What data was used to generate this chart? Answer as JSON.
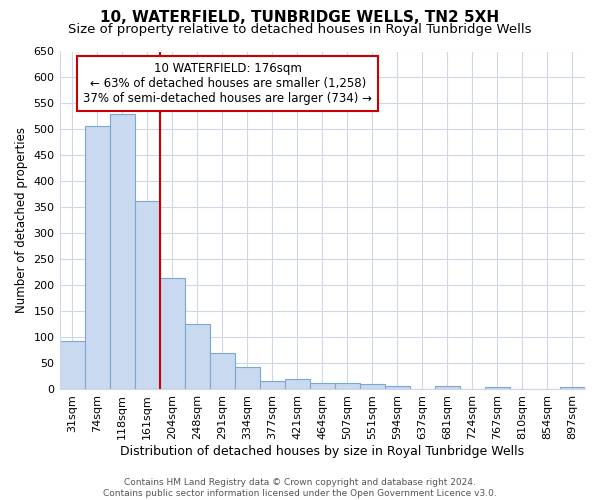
{
  "title": "10, WATERFIELD, TUNBRIDGE WELLS, TN2 5XH",
  "subtitle": "Size of property relative to detached houses in Royal Tunbridge Wells",
  "xlabel": "Distribution of detached houses by size in Royal Tunbridge Wells",
  "ylabel": "Number of detached properties",
  "footer_line1": "Contains HM Land Registry data © Crown copyright and database right 2024.",
  "footer_line2": "Contains public sector information licensed under the Open Government Licence v3.0.",
  "categories": [
    "31sqm",
    "74sqm",
    "118sqm",
    "161sqm",
    "204sqm",
    "248sqm",
    "291sqm",
    "334sqm",
    "377sqm",
    "421sqm",
    "464sqm",
    "507sqm",
    "551sqm",
    "594sqm",
    "637sqm",
    "681sqm",
    "724sqm",
    "767sqm",
    "810sqm",
    "854sqm",
    "897sqm"
  ],
  "values": [
    92,
    507,
    530,
    363,
    214,
    125,
    70,
    43,
    16,
    19,
    11,
    11,
    9,
    5,
    0,
    5,
    0,
    4,
    0,
    0,
    4
  ],
  "bar_color": "#c8d9f0",
  "bar_edge_color": "#7ba7d4",
  "property_label": "10 WATERFIELD: 176sqm",
  "annotation_line1": "← 63% of detached houses are smaller (1,258)",
  "annotation_line2": "37% of semi-detached houses are larger (734) →",
  "annotation_box_color": "#ffffff",
  "annotation_border_color": "#cc0000",
  "property_line_color": "#cc0000",
  "ylim": [
    0,
    650
  ],
  "yticks": [
    0,
    50,
    100,
    150,
    200,
    250,
    300,
    350,
    400,
    450,
    500,
    550,
    600,
    650
  ],
  "bg_color": "#ffffff",
  "grid_color": "#d0d8e8",
  "title_fontsize": 11,
  "subtitle_fontsize": 9.5,
  "xlabel_fontsize": 9,
  "ylabel_fontsize": 8.5,
  "tick_fontsize": 8,
  "footer_fontsize": 6.5,
  "annotation_fontsize": 8.5
}
